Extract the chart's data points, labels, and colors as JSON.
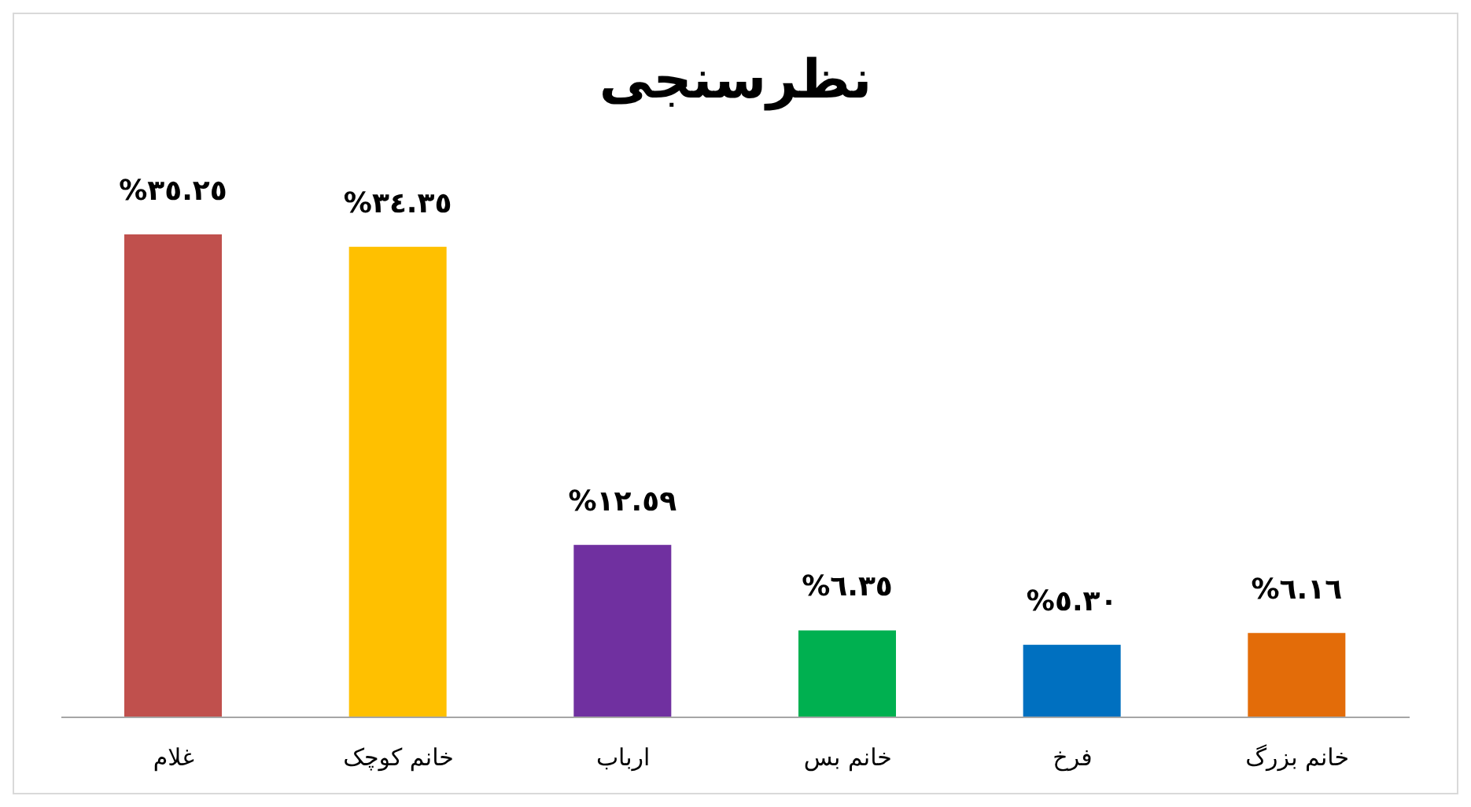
{
  "chart_data": {
    "type": "bar",
    "title": "نظرسنجی",
    "categories": [
      "غلام",
      "خانم کوچک",
      "ارباب",
      "خانم بس",
      "فرخ",
      "خانم بزرگ"
    ],
    "values": [
      35.25,
      34.35,
      12.59,
      6.35,
      5.3,
      6.16
    ],
    "colors": [
      "#c0504d",
      "#ffc000",
      "#7030a0",
      "#00b050",
      "#0070c0",
      "#e36c09"
    ],
    "value_labels": [
      "%٣٥.٢٥",
      "%٣٤.٣٥",
      "%١٢.٥٩",
      "%٦.٣٥",
      "%٥.٣٠",
      "%٦.١٦"
    ],
    "grid": false,
    "legend": false
  }
}
